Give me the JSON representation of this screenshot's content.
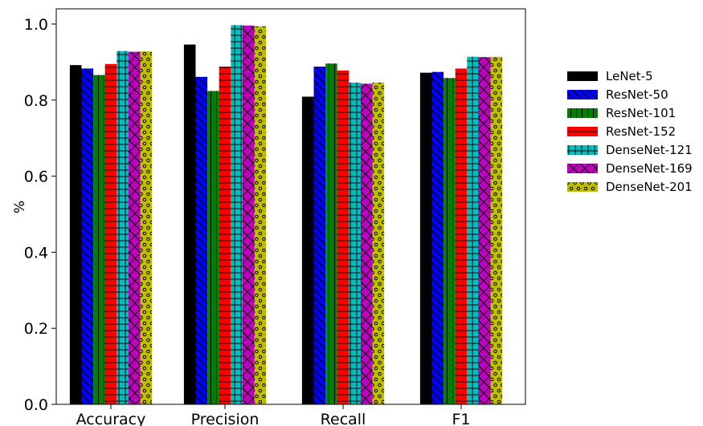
{
  "chart_data": {
    "type": "bar",
    "categories": [
      "Accuracy",
      "Precision",
      "Recall",
      "F1"
    ],
    "ylabel": "%",
    "xlabel": "",
    "ylim": [
      0,
      1.04
    ],
    "yticks": [
      "0.0",
      "0.2",
      "0.4",
      "0.6",
      "0.8",
      "1.0"
    ],
    "grid": false,
    "legend_position": "right",
    "series": [
      {
        "name": "LeNet-5",
        "values": [
          0.892,
          0.946,
          0.809,
          0.872
        ],
        "color": "#000000",
        "hatch": "none"
      },
      {
        "name": "ResNet-50",
        "values": [
          0.883,
          0.861,
          0.888,
          0.874
        ],
        "color": "#0000ff",
        "hatch": "backslash"
      },
      {
        "name": "ResNet-101",
        "values": [
          0.866,
          0.824,
          0.896,
          0.858
        ],
        "color": "#008000",
        "hatch": "vertical"
      },
      {
        "name": "ResNet-152",
        "values": [
          0.895,
          0.888,
          0.878,
          0.883
        ],
        "color": "#ff0000",
        "hatch": "horizontal"
      },
      {
        "name": "DenseNet-121",
        "values": [
          0.929,
          0.997,
          0.846,
          0.914
        ],
        "color": "#00bfbf",
        "hatch": "grid"
      },
      {
        "name": "DenseNet-169",
        "values": [
          0.927,
          0.996,
          0.843,
          0.913
        ],
        "color": "#bf00bf",
        "hatch": "cross"
      },
      {
        "name": "DenseNet-201",
        "values": [
          0.928,
          0.994,
          0.846,
          0.914
        ],
        "color": "#bfbf00",
        "hatch": "circles"
      }
    ]
  }
}
